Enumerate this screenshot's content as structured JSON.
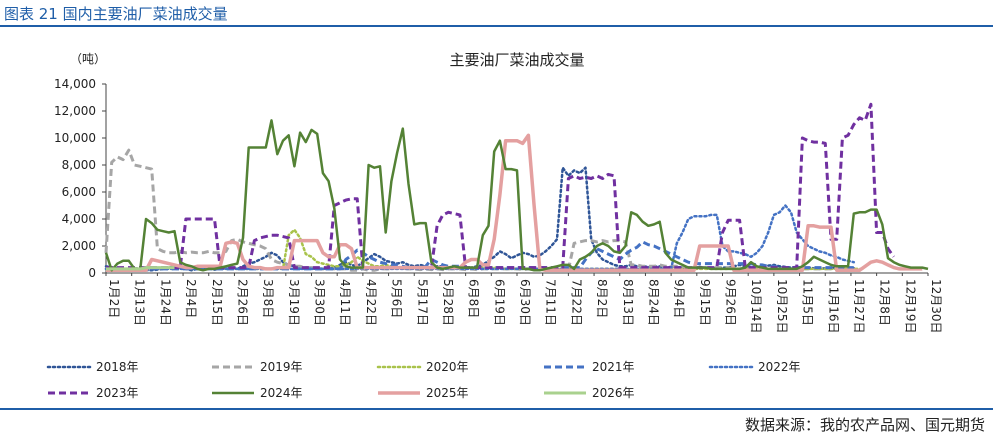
{
  "figure": {
    "caption": "图表 21 国内主要油厂菜油成交量",
    "source": "数据来源：我的农产品网、国元期货"
  },
  "chart_data": {
    "type": "line",
    "title": "主要油厂菜油成交量",
    "ylabel": "（吨）",
    "xlabel": "",
    "ylim": [
      0,
      14000
    ],
    "y_ticks": [
      0,
      2000,
      4000,
      6000,
      8000,
      10000,
      12000,
      14000
    ],
    "y_tick_labels": [
      "0",
      "2,000",
      "4,000",
      "6,000",
      "8,000",
      "10,000",
      "12,000",
      "14,000"
    ],
    "x_tick_labels": [
      "1月2日",
      "1月13日",
      "1月24日",
      "2月4日",
      "2月15日",
      "2月26日",
      "3月8日",
      "3月19日",
      "3月30日",
      "4月11日",
      "4月22日",
      "5月6日",
      "5月17日",
      "5月28日",
      "6月8日",
      "6月19日",
      "6月30日",
      "7月11日",
      "7月22日",
      "8月2日",
      "8月13日",
      "8月24日",
      "9月4日",
      "9月15日",
      "9月26日",
      "10月14日",
      "10月25日",
      "11月5日",
      "11月16日",
      "11月27日",
      "12月8日",
      "12月19日",
      "12月30日"
    ],
    "grid": false,
    "legend_position": "bottom",
    "series": [
      {
        "name": "2018年",
        "color": "#2f5597",
        "dash": "dot",
        "width": 2.5,
        "values": [
          500,
          400,
          350,
          300,
          300,
          350,
          300,
          200,
          200,
          250,
          300,
          400,
          500,
          400,
          300,
          200,
          300,
          300,
          400,
          250,
          300,
          350,
          400,
          300,
          500,
          700,
          800,
          1000,
          1200,
          1500,
          1300,
          800,
          600,
          500,
          400,
          400,
          300,
          300,
          300,
          300,
          400,
          600,
          800,
          600,
          500,
          800,
          1100,
          1400,
          1200,
          900,
          800,
          700,
          800,
          600,
          500,
          600,
          500,
          400,
          500,
          500,
          400,
          400,
          400,
          400,
          400,
          500,
          600,
          900,
          1200,
          1600,
          1400,
          1100,
          1300,
          1500,
          1400,
          1200,
          1300,
          1600,
          2000,
          2500,
          7800,
          7200,
          7600,
          7400,
          7800,
          2500,
          1500,
          1000,
          800,
          600,
          500,
          500,
          600,
          500,
          500,
          450,
          450,
          500,
          400,
          450,
          450,
          400,
          350,
          400,
          450,
          400,
          350,
          350,
          400,
          400,
          500,
          600,
          500,
          450,
          450,
          500,
          550,
          600,
          500,
          450,
          400,
          450,
          400,
          400,
          350,
          300,
          350,
          350,
          400,
          300,
          300,
          350
        ]
      },
      {
        "name": "2019年",
        "color": "#a6a6a6",
        "dash": "dash",
        "width": 3,
        "values": [
          1500,
          8200,
          8600,
          8400,
          9100,
          8000,
          7900,
          7800,
          7700,
          1800,
          1600,
          1500,
          1500,
          1600,
          1500,
          1550,
          1500,
          1500,
          1600,
          1500,
          1500,
          1600,
          2400,
          2500,
          2300,
          2200,
          2100,
          2000,
          1800,
          1000,
          800,
          700,
          600,
          500,
          500,
          400,
          400,
          300,
          300,
          300,
          300,
          300,
          300,
          200,
          200,
          300,
          200,
          200,
          300,
          300,
          300,
          400,
          350,
          300,
          300,
          250,
          300,
          250,
          300,
          250,
          300,
          300,
          300,
          250,
          300,
          250,
          300,
          300,
          300,
          300,
          300,
          300,
          300,
          250,
          300,
          250,
          300,
          300,
          250,
          250,
          300,
          250,
          2200,
          2300,
          2400,
          2400,
          2300,
          2400,
          2300,
          2400,
          2400,
          2300,
          600,
          600,
          500,
          500,
          500,
          600,
          500,
          500,
          500,
          500,
          400,
          400,
          400,
          400,
          400,
          400,
          400,
          400,
          300,
          300,
          300,
          300,
          300,
          300,
          300,
          300,
          300,
          300,
          300,
          300,
          300,
          300,
          300,
          300,
          300,
          300,
          300,
          300,
          300,
          300
        ]
      },
      {
        "name": "2020年",
        "color": "#a9c34b",
        "dash": "dot",
        "width": 2.5,
        "values": [
          300,
          300,
          250,
          300,
          300,
          350,
          300,
          300,
          300,
          300,
          300,
          300,
          300,
          300,
          300,
          300,
          300,
          300,
          300,
          300,
          300,
          300,
          300,
          300,
          300,
          300,
          300,
          300,
          300,
          300,
          300,
          300,
          2800,
          3200,
          2600,
          1400,
          1200,
          800,
          700,
          600,
          500,
          500,
          600,
          800,
          1200,
          900,
          700,
          500,
          500,
          600,
          500,
          400,
          400,
          400,
          400,
          400,
          400,
          400,
          400,
          400,
          400,
          400,
          400,
          400,
          400,
          400,
          400,
          400,
          400,
          400,
          300,
          300,
          300,
          300,
          300,
          300,
          300,
          300,
          300,
          300,
          300,
          300,
          300,
          300,
          300,
          300,
          300,
          300,
          300,
          300,
          300,
          300,
          300,
          300,
          300,
          300,
          300,
          300,
          300,
          300,
          300,
          300,
          300,
          300,
          300,
          300,
          300,
          300,
          300,
          300,
          300,
          300,
          300,
          300,
          300,
          300,
          300,
          300,
          300,
          300,
          300,
          300,
          300,
          300,
          300,
          300,
          300,
          300,
          300,
          300,
          300,
          300,
          300,
          300
        ]
      },
      {
        "name": "2021年",
        "color": "#4472c4",
        "dash": "dash",
        "width": 3,
        "values": [
          300,
          300,
          300,
          300,
          300,
          300,
          300,
          300,
          300,
          300,
          300,
          300,
          300,
          300,
          300,
          300,
          300,
          300,
          300,
          300,
          300,
          300,
          300,
          300,
          300,
          300,
          300,
          300,
          300,
          300,
          300,
          300,
          300,
          300,
          300,
          300,
          300,
          300,
          300,
          300,
          300,
          300,
          1000,
          1300,
          1700,
          1500,
          1200,
          1000,
          800,
          700,
          600,
          600,
          500,
          400,
          400,
          400,
          500,
          1000,
          800,
          600,
          500,
          500,
          500,
          400,
          400,
          400,
          400,
          400,
          400,
          400,
          400,
          400,
          400,
          400,
          400,
          400,
          400,
          400,
          400,
          400,
          400,
          400,
          400,
          400,
          1000,
          1500,
          1800,
          1600,
          1400,
          1200,
          1000,
          1400,
          1700,
          1900,
          2300,
          2100,
          2000,
          1800,
          1600,
          1400,
          1200,
          1000,
          800,
          700,
          700,
          700,
          700,
          700,
          700,
          700,
          700,
          700,
          700,
          700,
          600,
          600,
          500,
          500,
          400,
          400,
          400,
          400,
          400,
          400,
          400,
          400,
          400,
          400,
          400,
          400,
          400,
          400
        ]
      },
      {
        "name": "2022年",
        "color": "#4472c4",
        "dash": "dot",
        "width": 2.5,
        "values": [
          300,
          300,
          300,
          300,
          300,
          300,
          300,
          300,
          300,
          300,
          300,
          300,
          300,
          300,
          300,
          300,
          300,
          300,
          300,
          300,
          300,
          300,
          300,
          300,
          300,
          300,
          300,
          300,
          300,
          300,
          300,
          300,
          300,
          300,
          300,
          300,
          300,
          300,
          300,
          300,
          300,
          300,
          300,
          300,
          300,
          300,
          300,
          300,
          300,
          300,
          300,
          300,
          300,
          300,
          300,
          300,
          300,
          300,
          300,
          300,
          300,
          300,
          300,
          300,
          300,
          300,
          300,
          300,
          300,
          300,
          300,
          300,
          300,
          300,
          300,
          300,
          300,
          300,
          300,
          300,
          300,
          300,
          300,
          300,
          300,
          300,
          300,
          300,
          300,
          300,
          300,
          300,
          300,
          300,
          300,
          300,
          300,
          300,
          300,
          300,
          2200,
          3000,
          4000,
          4200,
          4200,
          4200,
          4300,
          4300,
          2000,
          1600,
          1600,
          1500,
          1400,
          1200,
          1500,
          2000,
          3000,
          4300,
          4500,
          5000,
          4500,
          3000,
          2500,
          2000,
          1800,
          1600,
          1500,
          1300,
          1200,
          1000,
          900,
          800
        ]
      },
      {
        "name": "2023年",
        "color": "#7030a0",
        "dash": "dash",
        "width": 3,
        "values": [
          400,
          400,
          400,
          400,
          400,
          400,
          400,
          400,
          400,
          400,
          400,
          400,
          400,
          400,
          4000,
          4000,
          4000,
          4000,
          4000,
          4000,
          400,
          400,
          400,
          400,
          400,
          400,
          2400,
          2600,
          2700,
          2800,
          2800,
          2700,
          2600,
          400,
          400,
          400,
          400,
          400,
          400,
          400,
          5000,
          5200,
          5400,
          5500,
          5500,
          400,
          400,
          400,
          400,
          400,
          400,
          400,
          400,
          400,
          400,
          400,
          400,
          400,
          3500,
          4300,
          4500,
          4400,
          4300,
          400,
          400,
          400,
          400,
          400,
          400,
          400,
          400,
          400,
          400,
          400,
          400,
          400,
          400,
          400,
          400,
          400,
          400,
          7000,
          7200,
          7000,
          7100,
          7000,
          7200,
          7000,
          7300,
          7200,
          400,
          400,
          400,
          400,
          400,
          400,
          400,
          400,
          400,
          400,
          400,
          400,
          400,
          400,
          400,
          400,
          400,
          400,
          3000,
          3900,
          3900,
          3900,
          400,
          400,
          400,
          400,
          400,
          400,
          400,
          400,
          400,
          400,
          10000,
          9800,
          9700,
          9700,
          9600,
          2500,
          2500,
          10000,
          10200,
          11000,
          11500,
          11300,
          12500,
          3000,
          3000,
          1800,
          1200
        ]
      },
      {
        "name": "2024年",
        "color": "#548235",
        "dash": "solid",
        "width": 2.5,
        "values": [
          1500,
          200,
          700,
          900,
          900,
          300,
          300,
          4000,
          3700,
          3200,
          3100,
          3000,
          3100,
          800,
          600,
          500,
          300,
          200,
          300,
          300,
          400,
          500,
          600,
          700,
          2600,
          9300,
          9300,
          9300,
          9300,
          11300,
          8800,
          9800,
          10200,
          7900,
          10400,
          9700,
          10600,
          10300,
          7400,
          6800,
          4800,
          1000,
          500,
          400,
          400,
          400,
          8000,
          7800,
          7900,
          3000,
          6800,
          8900,
          10700,
          6600,
          3600,
          3700,
          3700,
          800,
          400,
          300,
          400,
          500,
          400,
          400,
          400,
          400,
          2800,
          3500,
          9000,
          9800,
          7700,
          7700,
          7600,
          300,
          300,
          200,
          200,
          300,
          400,
          500,
          600,
          600,
          300,
          1000,
          1200,
          1500,
          2000,
          2200,
          2000,
          1600,
          1500,
          2000,
          4500,
          4300,
          3800,
          3500,
          3600,
          3800,
          1500,
          1000,
          800,
          600,
          400,
          400,
          400,
          400,
          300,
          300,
          300,
          300,
          300,
          300,
          400,
          800,
          500,
          400,
          300,
          300,
          300,
          300,
          300,
          300,
          500,
          800,
          1200,
          1000,
          800,
          600,
          500,
          500,
          500,
          4400,
          4500,
          4500,
          4700,
          4700,
          3600,
          1100,
          800,
          600,
          500,
          400,
          400,
          400,
          300
        ]
      },
      {
        "name": "2025年",
        "color": "#e4a0a0",
        "dash": "solid",
        "width": 3.5,
        "values": [
          200,
          200,
          200,
          200,
          200,
          200,
          200,
          200,
          1000,
          900,
          800,
          700,
          600,
          500,
          400,
          400,
          500,
          500,
          500,
          500,
          500,
          2200,
          2300,
          2200,
          1000,
          500,
          400,
          400,
          300,
          300,
          400,
          400,
          400,
          2400,
          2400,
          2400,
          2400,
          2400,
          1500,
          1200,
          1200,
          2100,
          2100,
          1800,
          400,
          400,
          400,
          400,
          400,
          400,
          400,
          400,
          400,
          400,
          400,
          400,
          400,
          400,
          400,
          400,
          400,
          400,
          400,
          800,
          1000,
          1000,
          600,
          600,
          2500,
          5800,
          9800,
          9800,
          9800,
          9600,
          10200,
          5000,
          300,
          200,
          200,
          200,
          200,
          200,
          200,
          200,
          200,
          200,
          200,
          200,
          200,
          200,
          200,
          200,
          200,
          200,
          200,
          200,
          200,
          200,
          200,
          200,
          200,
          200,
          200,
          200,
          2000,
          2000,
          2000,
          2000,
          2000,
          2000,
          200,
          200,
          200,
          200,
          200,
          200,
          200,
          200,
          200,
          200,
          200,
          200,
          200,
          3500,
          3500,
          3400,
          3400,
          3400,
          200,
          200,
          200,
          200,
          200,
          500,
          800,
          900,
          800,
          600,
          400,
          300,
          300,
          300,
          300,
          300
        ]
      },
      {
        "name": "2026年",
        "color": "#a9d18e",
        "dash": "solid",
        "width": 3,
        "values": [
          300,
          300,
          300,
          300,
          300,
          300,
          300,
          400,
          400,
          400,
          400,
          400,
          400
        ]
      }
    ]
  }
}
